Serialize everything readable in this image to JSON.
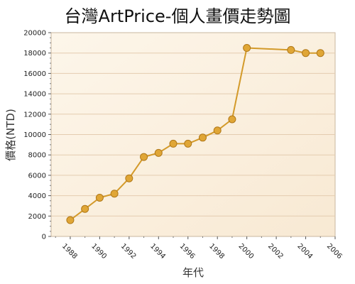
{
  "chart_data": {
    "type": "line",
    "title": "台灣ArtPrice-個人畫價走勢圖",
    "xlabel": "年代",
    "ylabel": "價格(NTD)",
    "xlim": [
      1986.7,
      2006
    ],
    "ylim": [
      0,
      20000
    ],
    "x_ticks": [
      1988,
      1990,
      1992,
      1994,
      1996,
      1998,
      2000,
      2002,
      2004,
      2006
    ],
    "y_ticks": [
      0,
      2000,
      4000,
      6000,
      8000,
      10000,
      12000,
      14000,
      16000,
      18000,
      20000
    ],
    "grid": true,
    "series": [
      {
        "x": [
          1988,
          1989,
          1990,
          1991,
          1992,
          1993,
          1994,
          1995,
          1996,
          1997,
          1998,
          1999,
          2000,
          2003,
          2004,
          2005
        ],
        "values": [
          1600,
          2700,
          3800,
          4200,
          5700,
          7800,
          8200,
          9100,
          9100,
          9700,
          10400,
          11500,
          18500,
          18300,
          18000,
          18000
        ]
      }
    ]
  },
  "colors": {
    "line": "#d39a2a",
    "marker_fill": "#e0a636",
    "marker_stroke": "#b07818",
    "grid": "#e4ccb0",
    "plot_bg_top": "#fdf6ea",
    "plot_bg_bottom": "#f8e9d3"
  }
}
